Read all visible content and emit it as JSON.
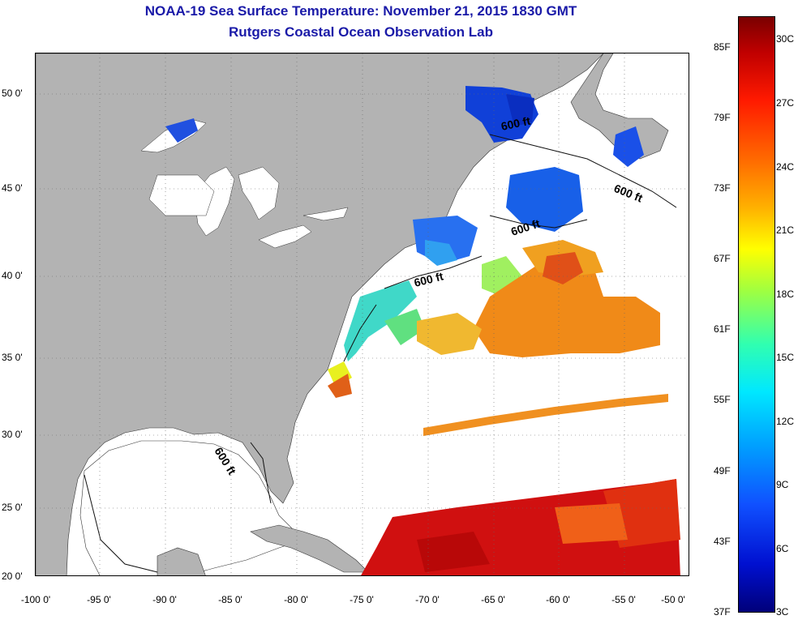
{
  "title": {
    "line1": "NOAA-19 Sea Surface Temperature:  November 21, 2015 1830 GMT",
    "line2": "Rutgers Coastal Ocean Observation Lab"
  },
  "axes": {
    "y_ticks": [
      "50 0'",
      "45 0'",
      "40 0'",
      "35 0'",
      "30 0'",
      "25 0'",
      "20 0'"
    ],
    "x_ticks": [
      "-100 0'",
      "-95 0'",
      "-90 0'",
      "-85 0'",
      "-80 0'",
      "-75 0'",
      "-70 0'",
      "-65 0'",
      "-60 0'",
      "-55 0'",
      "-50 0'"
    ]
  },
  "contour_labels": [
    "600 ft",
    "600 ft",
    "600 ft",
    "600 ft",
    "600 ft"
  ],
  "colorbar": {
    "fahrenheit": [
      "85F",
      "79F",
      "73F",
      "67F",
      "61F",
      "55F",
      "49F",
      "43F",
      "37F"
    ],
    "celsius": [
      "30C",
      "27C",
      "24C",
      "21C",
      "18C",
      "15C",
      "12C",
      "9C",
      "6C",
      "3C"
    ]
  },
  "colors": {
    "land": "#b3b3b3",
    "title": "#1a1aa8",
    "cold": "#0030d0",
    "warm": "#e03000"
  }
}
